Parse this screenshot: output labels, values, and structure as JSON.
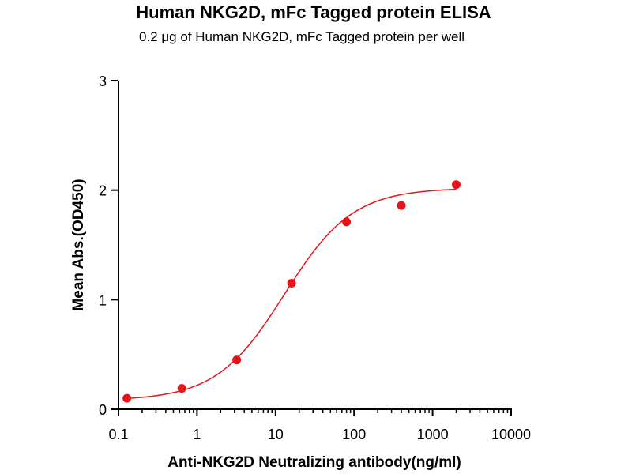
{
  "chart_data": {
    "type": "scatter",
    "title": "Human NKG2D,  mFc Tagged protein ELISA",
    "subtitle": "0.2 μg of Human NKG2D, mFc Tagged protein per well",
    "xlabel": "Anti-NKG2D Neutralizing antibody(ng/ml)",
    "ylabel": "Mean Abs.(OD450)",
    "xscale": "log",
    "xlim": [
      0.1,
      10000
    ],
    "ylim": [
      0,
      3
    ],
    "xticks": [
      "0.1",
      "1",
      "10",
      "100",
      "1000",
      "10000"
    ],
    "xtick_values": [
      0.1,
      1,
      10,
      100,
      1000,
      10000
    ],
    "yticks": [
      "0",
      "1",
      "2",
      "3"
    ],
    "ytick_values": [
      0,
      1,
      2,
      3
    ],
    "grid": false,
    "series": [
      {
        "name": "Data",
        "x": [
          0.128,
          0.64,
          3.2,
          16,
          80,
          400,
          2000
        ],
        "y": [
          0.1,
          0.19,
          0.45,
          1.15,
          1.71,
          1.86,
          2.05
        ],
        "color": "#e8141a"
      }
    ],
    "fit": {
      "model": "4PL",
      "bottom": 0.08,
      "top": 2.02,
      "ec50": 13,
      "hill": 1.0,
      "x_range": [
        0.128,
        2000
      ],
      "color": "#e8141a"
    }
  }
}
